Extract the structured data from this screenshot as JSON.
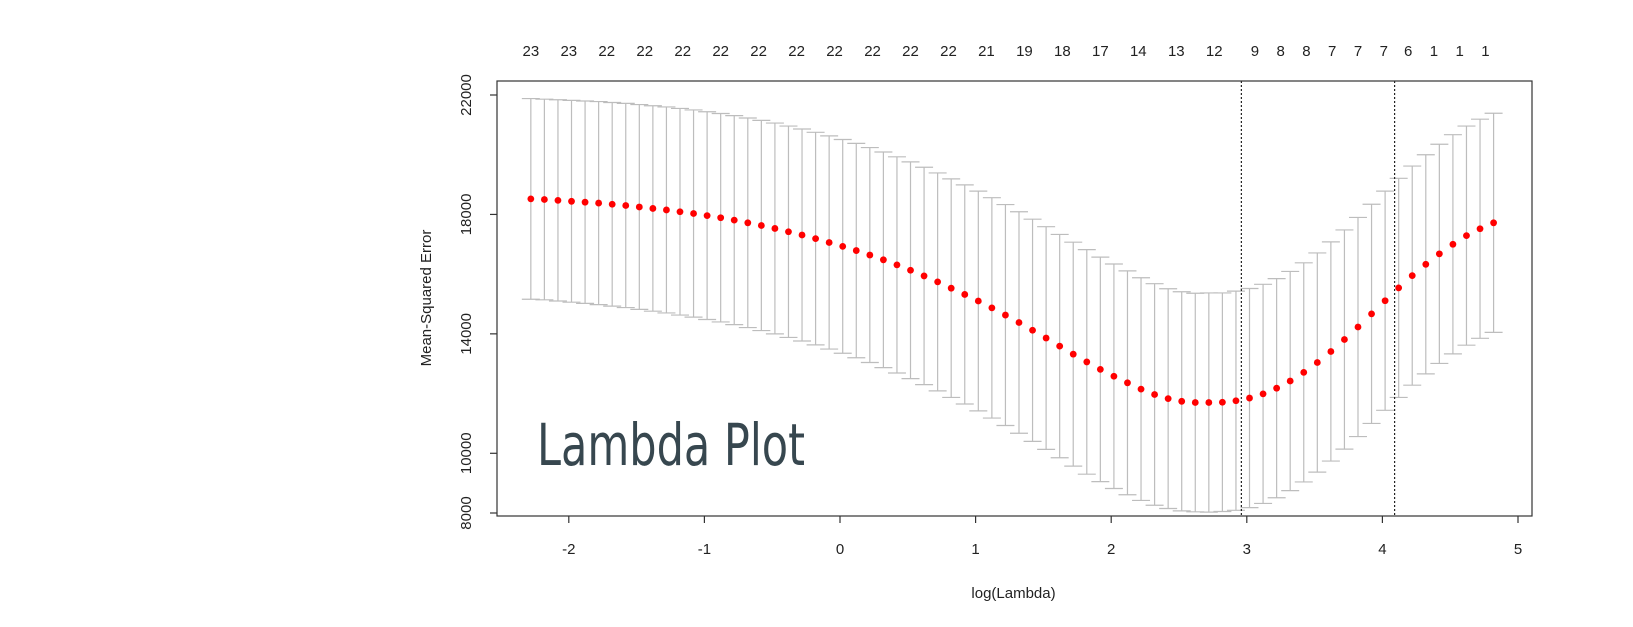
{
  "overlay_title": "Lambda Plot",
  "chart_data": {
    "type": "scatter",
    "xlabel": "log(Lambda)",
    "ylabel": "Mean-Squared Error",
    "xlim": [
      -2.5,
      5.1
    ],
    "ylim": [
      7900,
      22500
    ],
    "x_ticks": [
      -2,
      -1,
      0,
      1,
      2,
      3,
      4,
      5
    ],
    "x_tick_labels": [
      "-2",
      "-1",
      "0",
      "1",
      "2",
      "3",
      "4",
      "5"
    ],
    "y_ticks": [
      8000,
      10000,
      14000,
      18000,
      22000
    ],
    "y_tick_labels": [
      "8000",
      "10000",
      "14000",
      "18000",
      "22000"
    ],
    "top_axis": {
      "x": [
        -2.28,
        -2.0,
        -1.72,
        -1.44,
        -1.16,
        -0.88,
        -0.6,
        -0.32,
        -0.04,
        0.24,
        0.52,
        0.8,
        1.08,
        1.36,
        1.64,
        1.92,
        2.2,
        2.48,
        2.76,
        3.06,
        3.25,
        3.44,
        3.63,
        3.82,
        4.01,
        4.19,
        4.38,
        4.57,
        4.76
      ],
      "labels": [
        "23",
        "23",
        "22",
        "22",
        "22",
        "22",
        "22",
        "22",
        "22",
        "22",
        "22",
        "22",
        "21",
        "19",
        "18",
        "17",
        "14",
        "13",
        "12",
        "9",
        "8",
        "8",
        "7",
        "7",
        "7",
        "6",
        "1",
        "1",
        "1"
      ]
    },
    "vlines": [
      2.96,
      4.09
    ],
    "grid": false,
    "legend": "none",
    "marker_color": "#ff0000",
    "errorbar_color": "#bdbdbd",
    "series": [
      {
        "x": [
          -2.28,
          -2.18,
          -2.08,
          -1.98,
          -1.88,
          -1.78,
          -1.68,
          -1.58,
          -1.48,
          -1.38,
          -1.28,
          -1.18,
          -1.08,
          -0.98,
          -0.88,
          -0.78,
          -0.68,
          -0.58,
          -0.48,
          -0.38,
          -0.28,
          -0.18,
          -0.08,
          0.02,
          0.12,
          0.22,
          0.32,
          0.42,
          0.52,
          0.62,
          0.72,
          0.82,
          0.92,
          1.02,
          1.12,
          1.22,
          1.32,
          1.42,
          1.52,
          1.62,
          1.72,
          1.82,
          1.92,
          2.02,
          2.12,
          2.22,
          2.32,
          2.42,
          2.52,
          2.62,
          2.72,
          2.82,
          2.92,
          3.02,
          3.12,
          3.22,
          3.32,
          3.42,
          3.52,
          3.62,
          3.72,
          3.82,
          3.92,
          4.02,
          4.12,
          4.22,
          4.32,
          4.42,
          4.52,
          4.62,
          4.72,
          4.82
        ],
        "y": [
          18520,
          18500,
          18470,
          18440,
          18410,
          18380,
          18340,
          18300,
          18250,
          18200,
          18150,
          18090,
          18030,
          17960,
          17890,
          17810,
          17720,
          17630,
          17530,
          17420,
          17310,
          17190,
          17060,
          16930,
          16790,
          16640,
          16480,
          16310,
          16130,
          15940,
          15740,
          15530,
          15320,
          15100,
          14870,
          14630,
          14380,
          14120,
          13860,
          13590,
          13320,
          13060,
          12810,
          12580,
          12360,
          12150,
          11970,
          11830,
          11740,
          11700,
          11700,
          11710,
          11760,
          11850,
          11990,
          12180,
          12420,
          12710,
          13040,
          13410,
          13810,
          14230,
          14670,
          15110,
          15540,
          15950,
          16330,
          16680,
          17000,
          17290,
          17520,
          17720
        ],
        "lower": [
          15160,
          15140,
          15100,
          15060,
          15020,
          14980,
          14930,
          14880,
          14820,
          14760,
          14700,
          14630,
          14560,
          14480,
          14400,
          14310,
          14210,
          14110,
          14000,
          13880,
          13760,
          13630,
          13490,
          13350,
          13200,
          13040,
          12870,
          12690,
          12500,
          12300,
          12090,
          11870,
          11650,
          11420,
          11180,
          10930,
          10670,
          10400,
          10130,
          9850,
          9570,
          9300,
          9050,
          8820,
          8610,
          8420,
          8260,
          8150,
          8070,
          8040,
          8030,
          8050,
          8090,
          8180,
          8320,
          8510,
          8750,
          9040,
          9370,
          9740,
          10140,
          10560,
          11000,
          11440,
          11870,
          12280,
          12660,
          13010,
          13330,
          13620,
          13850,
          14050
        ],
        "upper": [
          21880,
          21860,
          21840,
          21820,
          21800,
          21780,
          21750,
          21720,
          21680,
          21640,
          21600,
          21550,
          21500,
          21440,
          21380,
          21310,
          21230,
          21150,
          21060,
          20960,
          20860,
          20750,
          20630,
          20510,
          20380,
          20240,
          20090,
          19930,
          19760,
          19580,
          19390,
          19190,
          18990,
          18780,
          18560,
          18330,
          18090,
          17840,
          17590,
          17330,
          17070,
          16820,
          16570,
          16340,
          16110,
          15880,
          15680,
          15510,
          15410,
          15360,
          15370,
          15370,
          15430,
          15520,
          15660,
          15850,
          16090,
          16380,
          16710,
          17080,
          17480,
          17900,
          18340,
          18780,
          19210,
          19620,
          20000,
          20350,
          20670,
          20960,
          21190,
          21390
        ]
      }
    ]
  }
}
